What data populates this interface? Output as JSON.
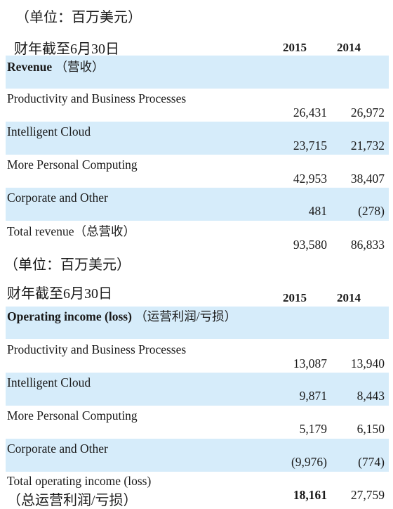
{
  "revenue_table": {
    "unit_note": "（单位：百万美元）",
    "fiscal_label": "财年截至6月30日",
    "year_cols": [
      "2015",
      "2014"
    ],
    "header_en": "Revenue",
    "header_cn": "（营收）",
    "rows": [
      {
        "label": "Productivity and Business Processes",
        "v2015": "26,431",
        "v2014": "26,972"
      },
      {
        "label": "Intelligent Cloud",
        "v2015": "23,715",
        "v2014": "21,732"
      },
      {
        "label": "More Personal Computing",
        "v2015": "42,953",
        "v2014": "38,407"
      },
      {
        "label": "Corporate and Other",
        "v2015": "481",
        "v2014": "(278)"
      }
    ],
    "total_label": "Total revenue（总营收）",
    "total_2015": "93,580",
    "total_2014": "86,833"
  },
  "operating_table": {
    "unit_note": "（单位：百万美元）",
    "fiscal_label": "财年截至6月30日",
    "year_cols": [
      "2015",
      "2014"
    ],
    "header_en": "Operating income (loss)",
    "header_cn": "（运营利润/亏损）",
    "rows": [
      {
        "label": "Productivity and Business Processes",
        "v2015": "13,087",
        "v2014": "13,940"
      },
      {
        "label": "Intelligent Cloud",
        "v2015": "9,871",
        "v2014": "8,443"
      },
      {
        "label": "More Personal Computing",
        "v2015": "5,179",
        "v2014": "6,150"
      },
      {
        "label": "Corporate and Other",
        "v2015": "(9,976)",
        "v2014": "(774)"
      }
    ],
    "total_label_en": "Total operating income (loss)",
    "total_label_cn": "（总运营利润/亏损）",
    "total_2015": "18,161",
    "total_2014": "27,759"
  },
  "colors": {
    "band": "#d6ecfa",
    "text": "#1a1a1a"
  }
}
